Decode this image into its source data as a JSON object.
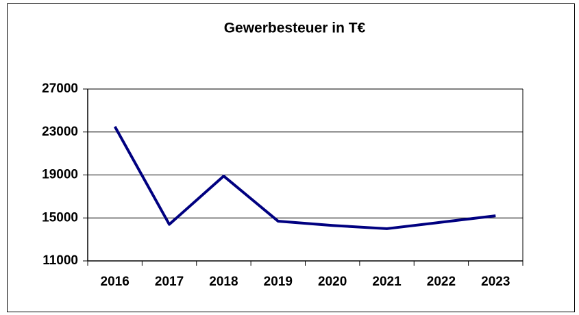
{
  "chart_data": {
    "type": "line",
    "title": "Gewerbesteuer in T€",
    "categories": [
      "2016",
      "2017",
      "2018",
      "2019",
      "2020",
      "2021",
      "2022",
      "2023"
    ],
    "values": [
      23500,
      14400,
      18900,
      14700,
      14300,
      14000,
      14600,
      15200
    ],
    "color": "#000080",
    "ylim": [
      11000,
      27000
    ],
    "yticks": [
      11000,
      15000,
      19000,
      23000,
      27000
    ],
    "grid": true
  }
}
